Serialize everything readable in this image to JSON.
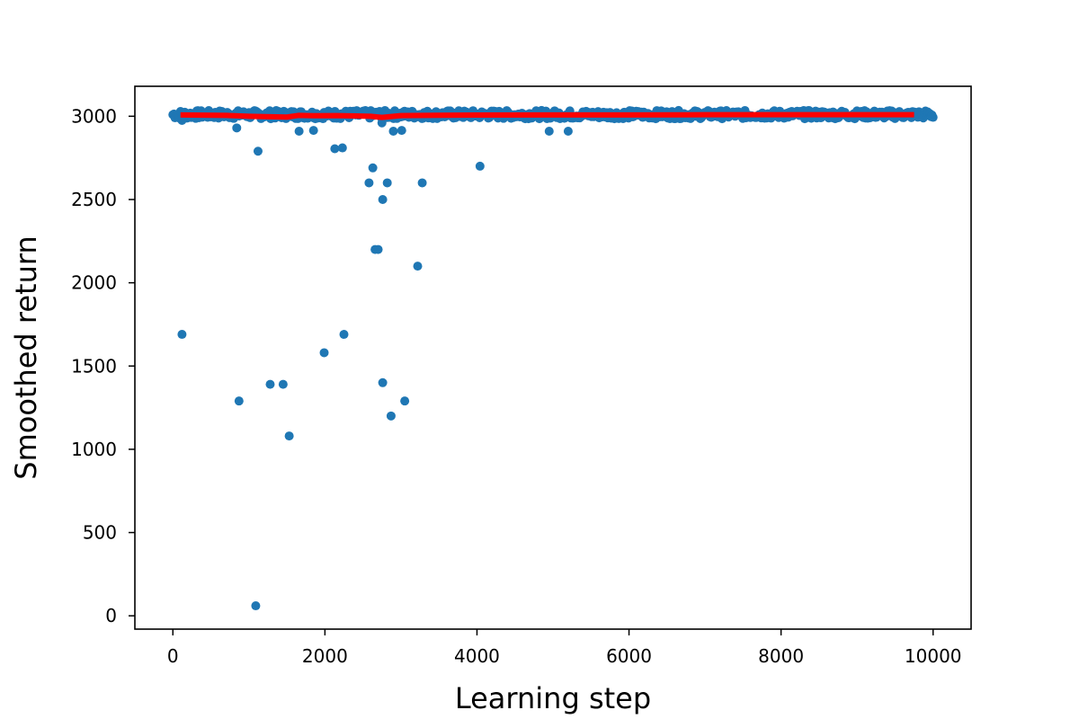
{
  "chart_data": {
    "type": "scatter",
    "title": "",
    "xlabel": "Learning step",
    "ylabel": "Smoothed return",
    "xlim": [
      -500,
      10500
    ],
    "ylim": [
      -80,
      3180
    ],
    "xticks": [
      0,
      2000,
      4000,
      6000,
      8000,
      10000
    ],
    "yticks": [
      0,
      500,
      1000,
      1500,
      2000,
      2500,
      3000
    ],
    "xtick_labels": [
      "0",
      "2000",
      "4000",
      "6000",
      "8000",
      "10000"
    ],
    "ytick_labels": [
      "0",
      "500",
      "1000",
      "1500",
      "2000",
      "2500",
      "3000"
    ],
    "grid": false,
    "legend": "none",
    "scatter_color": "#1f77b4",
    "line_color": "#ff0000",
    "dense_band": {
      "x_range": [
        0,
        10000
      ],
      "y_center": 3010,
      "y_spread": 25
    },
    "scatter_points": [
      {
        "x": 120,
        "y": 2975
      },
      {
        "x": 840,
        "y": 2930
      },
      {
        "x": 1120,
        "y": 2790
      },
      {
        "x": 1660,
        "y": 2910
      },
      {
        "x": 1850,
        "y": 2915
      },
      {
        "x": 2130,
        "y": 2805
      },
      {
        "x": 2230,
        "y": 2810
      },
      {
        "x": 2750,
        "y": 2960
      },
      {
        "x": 2900,
        "y": 2910
      },
      {
        "x": 3010,
        "y": 2915
      },
      {
        "x": 4950,
        "y": 2910
      },
      {
        "x": 5200,
        "y": 2910
      },
      {
        "x": 4040,
        "y": 2700
      },
      {
        "x": 2630,
        "y": 2690
      },
      {
        "x": 2580,
        "y": 2600
      },
      {
        "x": 2820,
        "y": 2600
      },
      {
        "x": 3280,
        "y": 2600
      },
      {
        "x": 2760,
        "y": 2500
      },
      {
        "x": 2660,
        "y": 2200
      },
      {
        "x": 2700,
        "y": 2200
      },
      {
        "x": 3220,
        "y": 2100
      },
      {
        "x": 120,
        "y": 1690
      },
      {
        "x": 2250,
        "y": 1690
      },
      {
        "x": 1990,
        "y": 1580
      },
      {
        "x": 1280,
        "y": 1390
      },
      {
        "x": 1450,
        "y": 1390
      },
      {
        "x": 2760,
        "y": 1400
      },
      {
        "x": 870,
        "y": 1290
      },
      {
        "x": 3050,
        "y": 1290
      },
      {
        "x": 2870,
        "y": 1200
      },
      {
        "x": 1530,
        "y": 1080
      },
      {
        "x": 1090,
        "y": 60
      }
    ],
    "line_series": {
      "x": [
        100,
        700,
        1000,
        1200,
        1500,
        1650,
        1850,
        2150,
        2400,
        2600,
        2750,
        3000,
        3500,
        4000,
        5000,
        6000,
        7000,
        8000,
        9000,
        9750
      ],
      "y": [
        3008,
        3005,
        3000,
        2998,
        2995,
        3005,
        3003,
        3004,
        3002,
        3000,
        2993,
        3004,
        3006,
        3007,
        3008,
        3008,
        3009,
        3009,
        3009,
        3009
      ]
    }
  }
}
